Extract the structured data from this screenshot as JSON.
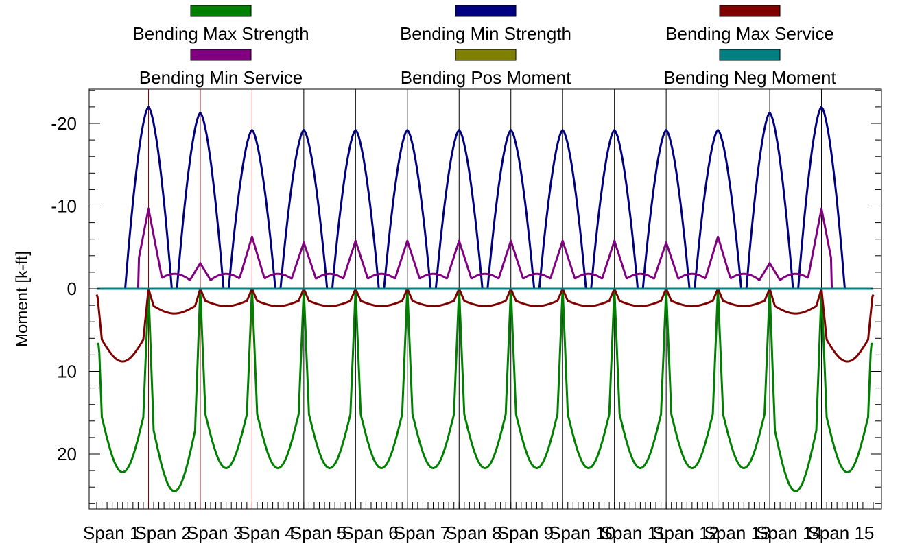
{
  "chart_data": {
    "type": "line",
    "title": "",
    "xlabel": "",
    "ylabel": "Moment [k-ft]",
    "y_inverted": true,
    "ylim": [
      -25,
      27
    ],
    "yticks": [
      -20,
      -10,
      0,
      10,
      20
    ],
    "ytick_labels": [
      "-20",
      "-10",
      "0",
      "10",
      "20"
    ],
    "x_range": [
      0,
      15
    ],
    "x_tick_labels": [
      "Span 1",
      "Span 2",
      "Span 3",
      "Span 4",
      "Span 5",
      "Span 6",
      "Span 7",
      "Span 8",
      "Span 9",
      "Span 10",
      "Span 11",
      "Span 12",
      "Span 13",
      "Span 14",
      "Span 15"
    ],
    "support_lines_at": [
      1,
      2,
      3,
      4,
      5,
      6,
      7,
      8,
      9,
      10,
      11,
      12,
      13,
      14
    ],
    "legend_position": "top",
    "series": [
      {
        "name": "Bending Max Strength",
        "color": "#008000",
        "kind": "max_strength",
        "peak_by_span": [
          22.2,
          24.5,
          21.7,
          21.7,
          21.7,
          21.7,
          21.7,
          21.7,
          21.7,
          21.7,
          21.7,
          21.7,
          21.7,
          24.5,
          22.2
        ]
      },
      {
        "name": "Bending Min Strength",
        "color": "#000080",
        "kind": "min_strength",
        "peak_at_support": [
          -22.0,
          -21.3,
          -19.2,
          -19.2,
          -19.2,
          -19.2,
          -19.2,
          -19.2,
          -19.2,
          -19.2,
          -19.2,
          -19.2,
          -21.3,
          -22.0
        ]
      },
      {
        "name": "Bending Max Service",
        "color": "#800000",
        "kind": "max_service",
        "peak_by_span": [
          8.8,
          3.0,
          2.1,
          2.1,
          2.1,
          2.1,
          2.1,
          2.1,
          2.1,
          2.1,
          2.1,
          2.1,
          2.1,
          3.0,
          8.8
        ]
      },
      {
        "name": "Bending Min Service",
        "color": "#800080",
        "kind": "min_service",
        "peak_at_support": [
          -9.7,
          -3.1,
          -6.3,
          -5.6,
          -5.8,
          -5.8,
          -5.8,
          -5.8,
          -5.8,
          -5.8,
          -5.6,
          -6.3,
          -3.1,
          -9.7
        ]
      },
      {
        "name": "Bending Pos Moment",
        "color": "#808000",
        "kind": "zero"
      },
      {
        "name": "Bending Neg Moment",
        "color": "#008080",
        "kind": "zero"
      }
    ]
  }
}
